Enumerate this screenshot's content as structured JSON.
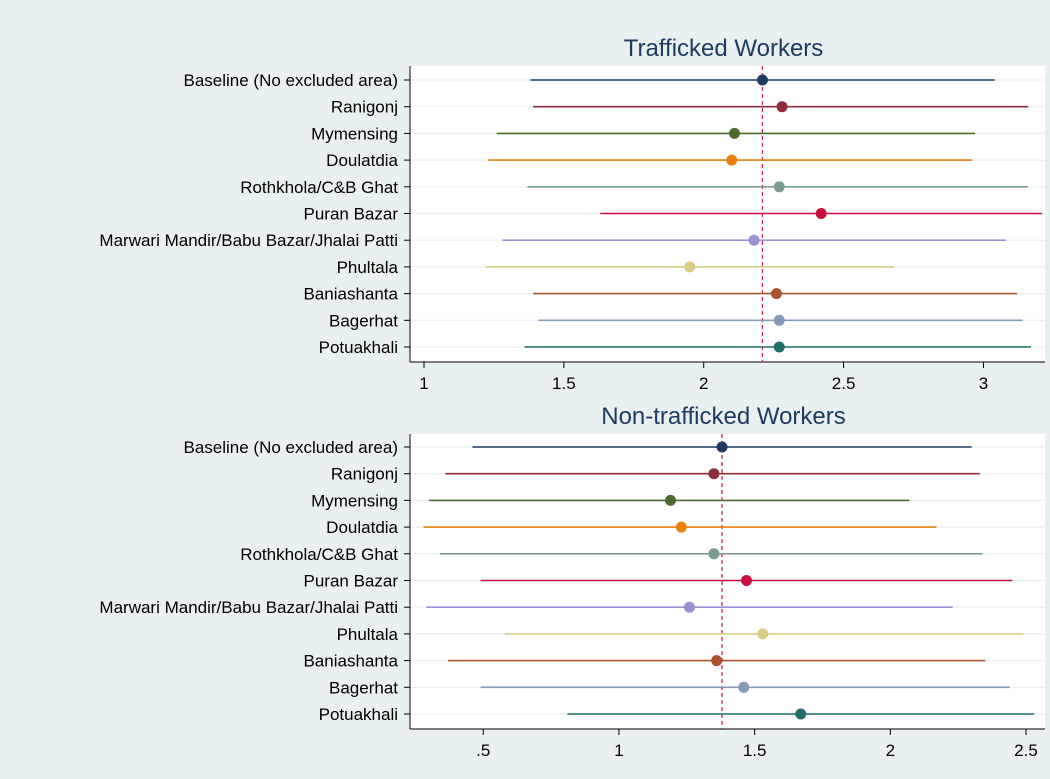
{
  "colors": {
    "outer_background": "#e9f0f2",
    "plot_background": "#ffffff",
    "grid": "#e9f0f2",
    "title": "#1f3b63",
    "baseline_line": "#c02a55"
  },
  "chart_data": [
    {
      "type": "scatter",
      "subtype": "coefficient-plot-with-confidence-intervals",
      "title": "Trafficked Workers",
      "xlabel": "",
      "ylabel": "",
      "xlim": [
        0.95,
        3.22
      ],
      "xticks": [
        1,
        1.5,
        2,
        2.5,
        3
      ],
      "xtick_labels": [
        "1",
        "1.5",
        "2",
        "2.5",
        "3"
      ],
      "reference_line": 2.21,
      "grid": true,
      "series": [
        {
          "category": "Baseline (No excluded area)",
          "estimate": 2.21,
          "ci_low": 1.38,
          "ci_high": 3.04,
          "color": "#1f3b63"
        },
        {
          "category": "Ranigonj",
          "estimate": 2.28,
          "ci_low": 1.39,
          "ci_high": 3.16,
          "color": "#8f2d3c"
        },
        {
          "category": "Mymensing",
          "estimate": 2.11,
          "ci_low": 1.26,
          "ci_high": 2.97,
          "color": "#4e6b2c"
        },
        {
          "category": "Doulatdia",
          "estimate": 2.1,
          "ci_low": 1.23,
          "ci_high": 2.96,
          "color": "#e8800f"
        },
        {
          "category": "Rothkhola/C&B Ghat",
          "estimate": 2.27,
          "ci_low": 1.37,
          "ci_high": 3.16,
          "color": "#7b9c8f"
        },
        {
          "category": "Puran Bazar",
          "estimate": 2.42,
          "ci_low": 1.63,
          "ci_high": 3.21,
          "color": "#c8103e"
        },
        {
          "category": "Marwari Mandir/Babu Bazar/Jhalai Patti",
          "estimate": 2.18,
          "ci_low": 1.28,
          "ci_high": 3.08,
          "color": "#9b90d4"
        },
        {
          "category": "Phultala",
          "estimate": 1.95,
          "ci_low": 1.22,
          "ci_high": 2.68,
          "color": "#d8cc86"
        },
        {
          "category": "Baniashanta",
          "estimate": 2.26,
          "ci_low": 1.39,
          "ci_high": 3.12,
          "color": "#a9522f"
        },
        {
          "category": "Bagerhat",
          "estimate": 2.27,
          "ci_low": 1.41,
          "ci_high": 3.14,
          "color": "#8799bb"
        },
        {
          "category": "Potuakhali",
          "estimate": 2.27,
          "ci_low": 1.36,
          "ci_high": 3.17,
          "color": "#1f6f68"
        }
      ]
    },
    {
      "type": "scatter",
      "subtype": "coefficient-plot-with-confidence-intervals",
      "title": "Non-trafficked Workers",
      "xlabel": "",
      "ylabel": "",
      "xlim": [
        0.23,
        2.57
      ],
      "xticks": [
        0.5,
        1,
        1.5,
        2,
        2.5
      ],
      "xtick_labels": [
        ".5",
        "1",
        "1.5",
        "2",
        "2.5"
      ],
      "reference_line": 1.38,
      "grid": true,
      "series": [
        {
          "category": "Baseline (No excluded area)",
          "estimate": 1.38,
          "ci_low": 0.46,
          "ci_high": 2.3,
          "color": "#1f3b63"
        },
        {
          "category": "Ranigonj",
          "estimate": 1.35,
          "ci_low": 0.36,
          "ci_high": 2.33,
          "color": "#8f2d3c"
        },
        {
          "category": "Mymensing",
          "estimate": 1.19,
          "ci_low": 0.3,
          "ci_high": 2.07,
          "color": "#4e6b2c"
        },
        {
          "category": "Doulatdia",
          "estimate": 1.23,
          "ci_low": 0.28,
          "ci_high": 2.17,
          "color": "#e8800f"
        },
        {
          "category": "Rothkhola/C&B Ghat",
          "estimate": 1.35,
          "ci_low": 0.34,
          "ci_high": 2.34,
          "color": "#7b9c8f"
        },
        {
          "category": "Puran Bazar",
          "estimate": 1.47,
          "ci_low": 0.49,
          "ci_high": 2.45,
          "color": "#c8103e"
        },
        {
          "category": "Marwari Mandir/Babu Bazar/Jhalai Patti",
          "estimate": 1.26,
          "ci_low": 0.29,
          "ci_high": 2.23,
          "color": "#9b90d4"
        },
        {
          "category": "Phultala",
          "estimate": 1.53,
          "ci_low": 0.58,
          "ci_high": 2.49,
          "color": "#d8cc86"
        },
        {
          "category": "Baniashanta",
          "estimate": 1.36,
          "ci_low": 0.37,
          "ci_high": 2.35,
          "color": "#a9522f"
        },
        {
          "category": "Bagerhat",
          "estimate": 1.46,
          "ci_low": 0.49,
          "ci_high": 2.44,
          "color": "#8799bb"
        },
        {
          "category": "Potuakhali",
          "estimate": 1.67,
          "ci_low": 0.81,
          "ci_high": 2.53,
          "color": "#1f6f68"
        }
      ]
    }
  ]
}
